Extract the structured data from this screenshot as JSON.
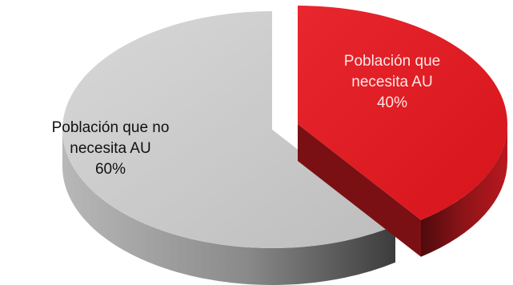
{
  "chart_data": {
    "type": "pie",
    "style": "3d-exploded",
    "categories": [
      "Población que necesita AU",
      "Población que no necesita AU"
    ],
    "values": [
      40,
      60
    ],
    "labels": [
      {
        "line1": "Población que",
        "line2": "necesita AU",
        "pct": "40%"
      },
      {
        "line1": "Población que no",
        "line2": "necesita AU",
        "pct": "60%"
      }
    ],
    "colors": {
      "necesita_top": "#e31b23",
      "necesita_side": "#8e1418",
      "no_necesita_top": "#c8c8c8",
      "no_necesita_side": "#8a8a8a",
      "label_on_red": "#ffe6e6",
      "label_on_grey": "#111111"
    },
    "title": "",
    "legend": "none"
  }
}
